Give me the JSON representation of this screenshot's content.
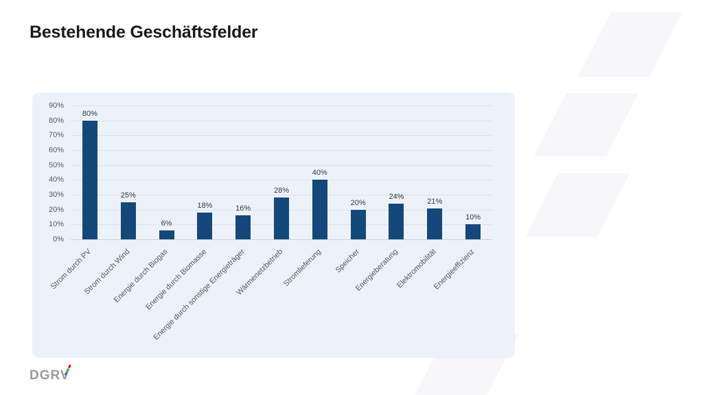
{
  "chart_data": {
    "type": "bar",
    "title": "Bestehende Geschäftsfelder",
    "categories": [
      "Strom durch PV",
      "Strom durch Wind",
      "Energie durch Biogas",
      "Energie durch Biomasse",
      "Energie durch sonstige Energieträger",
      "Wärmenetzbetrieb",
      "Stromlieferung",
      "Speicher",
      "Energieberatung",
      "Elektromobilität",
      "Energieeffizienz"
    ],
    "values": [
      80,
      25,
      6,
      18,
      16,
      28,
      40,
      20,
      24,
      21,
      10
    ],
    "value_labels": [
      "80%",
      "25%",
      "6%",
      "18%",
      "16%",
      "28%",
      "40%",
      "20%",
      "24%",
      "21%",
      "10%"
    ],
    "xlabel": "",
    "ylabel": "",
    "ylim": [
      0,
      90
    ],
    "ytick_step": 10,
    "ytick_labels": [
      "0%",
      "10%",
      "20%",
      "30%",
      "40%",
      "50%",
      "60%",
      "70%",
      "80%",
      "90%"
    ],
    "grid": true,
    "legend": false,
    "bar_color": "#14487A",
    "panel_bg": "#EDF1FA",
    "grid_color": "#DCE1ED",
    "axis_line_color": "#C9D0DE",
    "axis_label_color": "#595959",
    "value_label_color": "#3A3A3A"
  },
  "footer": {
    "logo_text": "DGRV",
    "slash_colors": [
      "#E30613",
      "#3AAA35",
      "#1D71B8"
    ]
  }
}
